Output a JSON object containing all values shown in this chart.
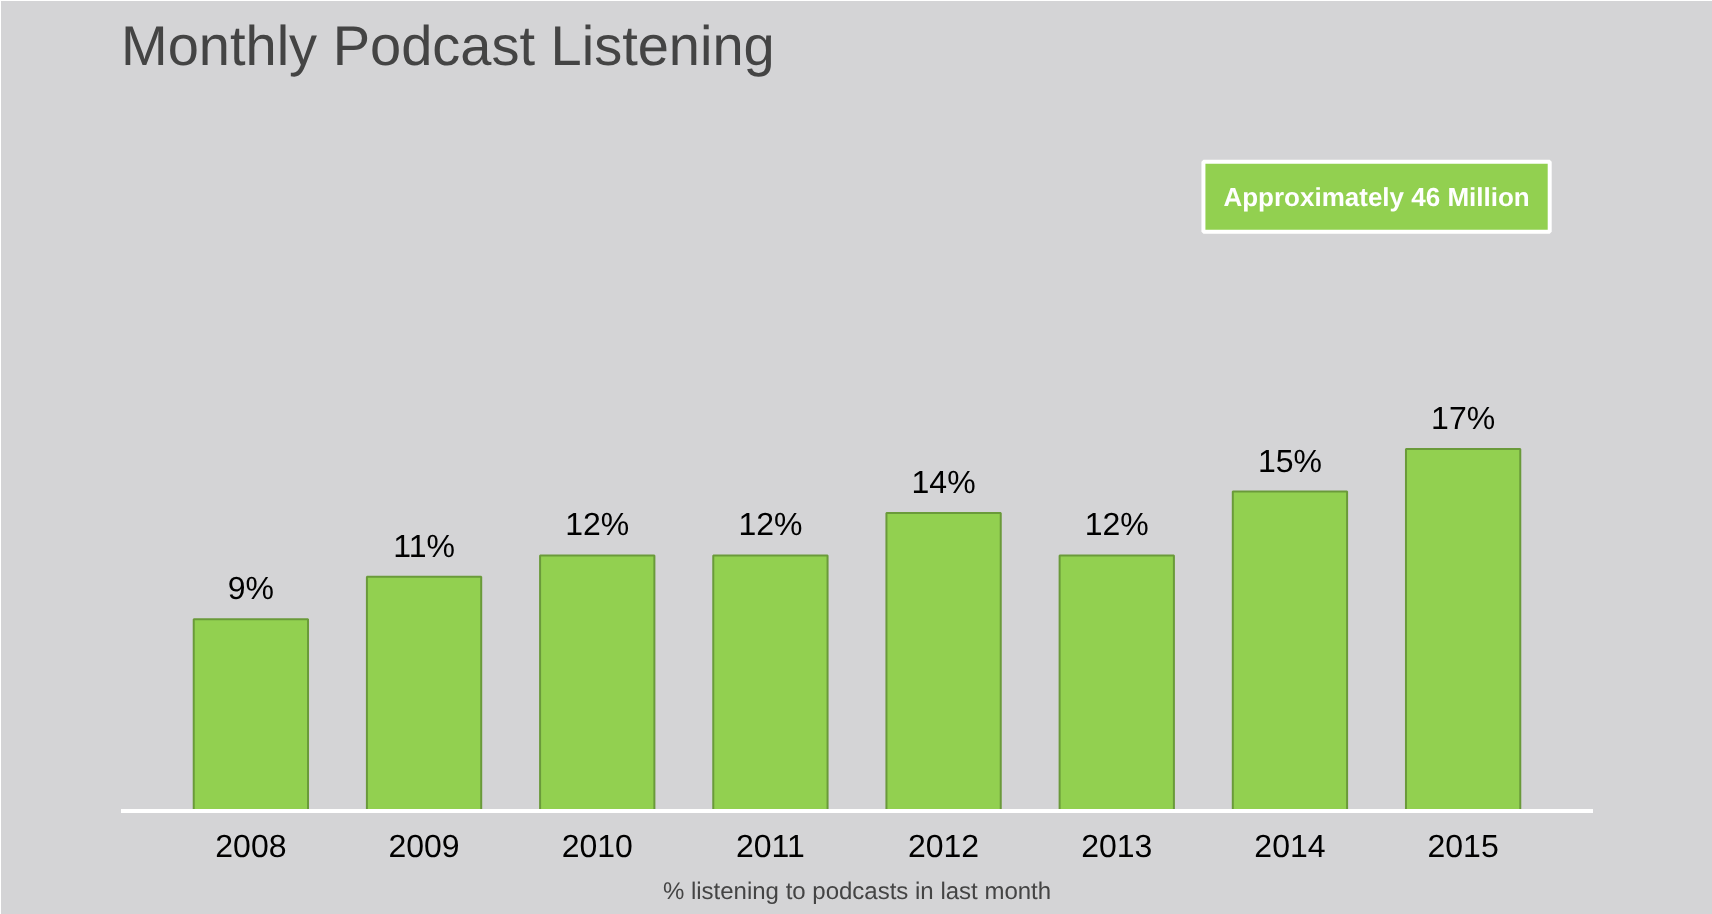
{
  "chart_data": {
    "type": "bar",
    "title": "Monthly Podcast Listening",
    "categories": [
      "2008",
      "2009",
      "2010",
      "2011",
      "2012",
      "2013",
      "2014",
      "2015"
    ],
    "values": [
      9,
      11,
      12,
      12,
      14,
      12,
      15,
      17
    ],
    "color": "#92d050",
    "data_labels": true,
    "value_labels": [
      "9%",
      "11%",
      "12%",
      "12%",
      "14%",
      "12%",
      "15%",
      "17%"
    ],
    "annotations": [
      "Approximately 46 Million",
      "% listening to podcasts in last month"
    ]
  }
}
